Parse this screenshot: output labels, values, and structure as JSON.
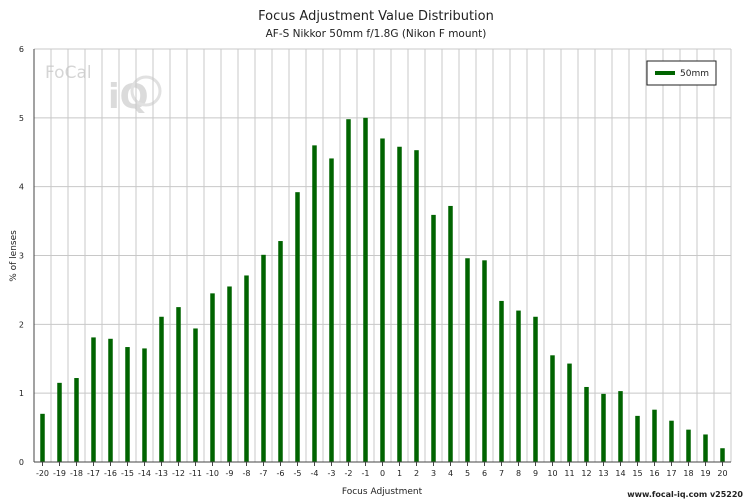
{
  "chart_data": {
    "type": "bar",
    "title": "Focus Adjustment Value Distribution",
    "subtitle": "AF-S Nikkor 50mm f/1.8G (Nikon F mount)",
    "xlabel": "Focus Adjustment",
    "ylabel": "% of lenses",
    "ylim": [
      0,
      6
    ],
    "yticks": [
      "0",
      "1",
      "2",
      "3",
      "4",
      "5",
      "6"
    ],
    "grid": true,
    "legend_position": "top-right",
    "categories": [
      "-20",
      "-19",
      "-18",
      "-17",
      "-16",
      "-15",
      "-14",
      "-13",
      "-12",
      "-11",
      "-10",
      "-9",
      "-8",
      "-7",
      "-6",
      "-5",
      "-4",
      "-3",
      "-2",
      "-1",
      "0",
      "1",
      "2",
      "3",
      "4",
      "5",
      "6",
      "7",
      "8",
      "9",
      "10",
      "11",
      "12",
      "13",
      "14",
      "15",
      "16",
      "17",
      "18",
      "19",
      "20"
    ],
    "series": [
      {
        "name": "50mm",
        "color": "#006400",
        "values": [
          0.7,
          1.15,
          1.22,
          1.81,
          1.79,
          1.67,
          1.65,
          2.11,
          2.25,
          1.94,
          2.45,
          2.55,
          2.71,
          3.01,
          3.21,
          3.92,
          4.6,
          4.41,
          4.98,
          5.0,
          4.7,
          4.58,
          4.53,
          3.59,
          3.72,
          2.96,
          2.93,
          2.34,
          2.2,
          2.11,
          1.55,
          1.43,
          1.09,
          0.99,
          1.03,
          0.67,
          0.76,
          0.6,
          0.47,
          0.4,
          0.2
        ]
      }
    ]
  },
  "logo": {
    "text_top": "FoCal",
    "text_bottom": "iQ",
    "icon": "focal-iq-watermark-logo"
  },
  "credit": "www.focal-iq.com  v25220"
}
